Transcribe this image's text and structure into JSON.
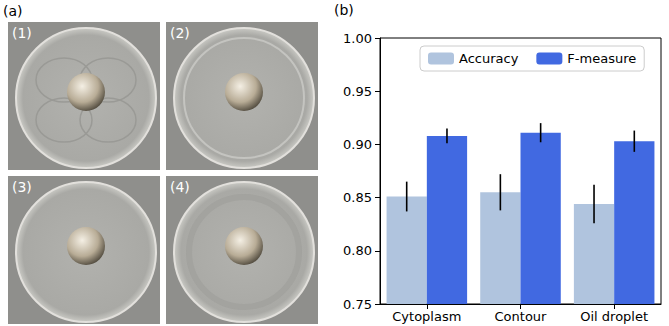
{
  "panel_labels": [
    "(a)",
    "(b)"
  ],
  "images": [
    "(1)",
    "(2)",
    "(3)",
    "(4)"
  ],
  "chart_data": {
    "type": "bar",
    "categories": [
      "Cytoplasm",
      "Contour",
      "Oil droplet"
    ],
    "series": [
      {
        "name": "Accuracy",
        "color": "#b0c4de",
        "values": [
          0.851,
          0.855,
          0.844
        ],
        "errors": [
          0.014,
          0.017,
          0.018
        ]
      },
      {
        "name": "F-measure",
        "color": "#4169e1",
        "values": [
          0.908,
          0.911,
          0.903
        ],
        "errors": [
          0.007,
          0.009,
          0.01
        ]
      }
    ],
    "ylim": [
      0.75,
      1.0
    ],
    "yticks": [
      {
        "value": 0.75,
        "label": "0.75"
      },
      {
        "value": 0.8,
        "label": "0.80"
      },
      {
        "value": 0.85,
        "label": "0.85"
      },
      {
        "value": 0.9,
        "label": "0.90"
      },
      {
        "value": 0.95,
        "label": "0.95"
      },
      {
        "value": 1.0,
        "label": "1.00"
      }
    ],
    "grid": false,
    "legend": "top"
  }
}
